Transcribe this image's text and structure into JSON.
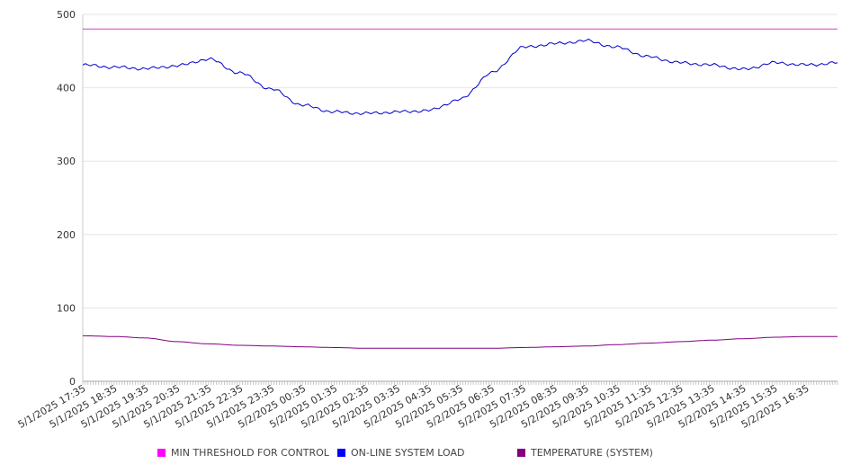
{
  "chart_data": {
    "type": "line",
    "title": "",
    "xlabel": "",
    "ylabel": "",
    "ylim": [
      0,
      500
    ],
    "yticks": [
      0,
      100,
      200,
      300,
      400,
      500
    ],
    "grid": true,
    "legend_position": "bottom",
    "x_tick_labels": [
      "5/1/2025 17:35",
      "5/1/2025 18:35",
      "5/1/2025 19:35",
      "5/1/2025 20:35",
      "5/1/2025 21:35",
      "5/1/2025 22:35",
      "5/1/2025 23:35",
      "5/2/2025 00:35",
      "5/2/2025 01:35",
      "5/2/2025 02:35",
      "5/2/2025 03:35",
      "5/2/2025 04:35",
      "5/2/2025 05:35",
      "5/2/2025 06:35",
      "5/2/2025 07:35",
      "5/2/2025 08:35",
      "5/2/2025 09:35",
      "5/2/2025 10:35",
      "5/2/2025 11:35",
      "5/2/2025 12:35",
      "5/2/2025 13:35",
      "5/2/2025 14:35",
      "5/2/2025 15:35",
      "5/2/2025 16:35"
    ],
    "x": [
      "5/1/2025 17:35",
      "5/1/2025 18:35",
      "5/1/2025 19:35",
      "5/1/2025 20:35",
      "5/1/2025 21:35",
      "5/1/2025 22:35",
      "5/1/2025 23:35",
      "5/2/2025 00:35",
      "5/2/2025 01:35",
      "5/2/2025 02:35",
      "5/2/2025 03:35",
      "5/2/2025 04:35",
      "5/2/2025 05:35",
      "5/2/2025 06:35",
      "5/2/2025 07:35",
      "5/2/2025 08:35",
      "5/2/2025 09:35",
      "5/2/2025 10:35",
      "5/2/2025 11:35",
      "5/2/2025 12:35",
      "5/2/2025 13:35",
      "5/2/2025 14:35",
      "5/2/2025 15:35",
      "5/2/2025 16:35",
      "5/2/2025 17:30"
    ],
    "series": [
      {
        "name": "MIN THRESHOLD FOR CONTROL",
        "color": "#cc44cc",
        "values": [
          480,
          480,
          480,
          480,
          480,
          480,
          480,
          480,
          480,
          480,
          480,
          480,
          480,
          480,
          480,
          480,
          480,
          480,
          480,
          480,
          480,
          480,
          480,
          480,
          480
        ]
      },
      {
        "name": "ON-LINE SYSTEM LOAD",
        "color": "#0000cc",
        "values": [
          431,
          428,
          426,
          430,
          439,
          420,
          398,
          376,
          367,
          365,
          367,
          369,
          384,
          420,
          455,
          460,
          464,
          455,
          442,
          434,
          431,
          425,
          434,
          431,
          434
        ]
      },
      {
        "name": "TEMPERATURE (SYSTEM)",
        "color": "#800080",
        "values": [
          62,
          61,
          59,
          54,
          51,
          49,
          48,
          47,
          46,
          45,
          45,
          45,
          45,
          45,
          46,
          47,
          48,
          50,
          52,
          54,
          56,
          58,
          60,
          61,
          61
        ]
      }
    ]
  },
  "legend": {
    "swatch_colors": [
      "#ff00ff",
      "#0000ff",
      "#800080"
    ]
  }
}
